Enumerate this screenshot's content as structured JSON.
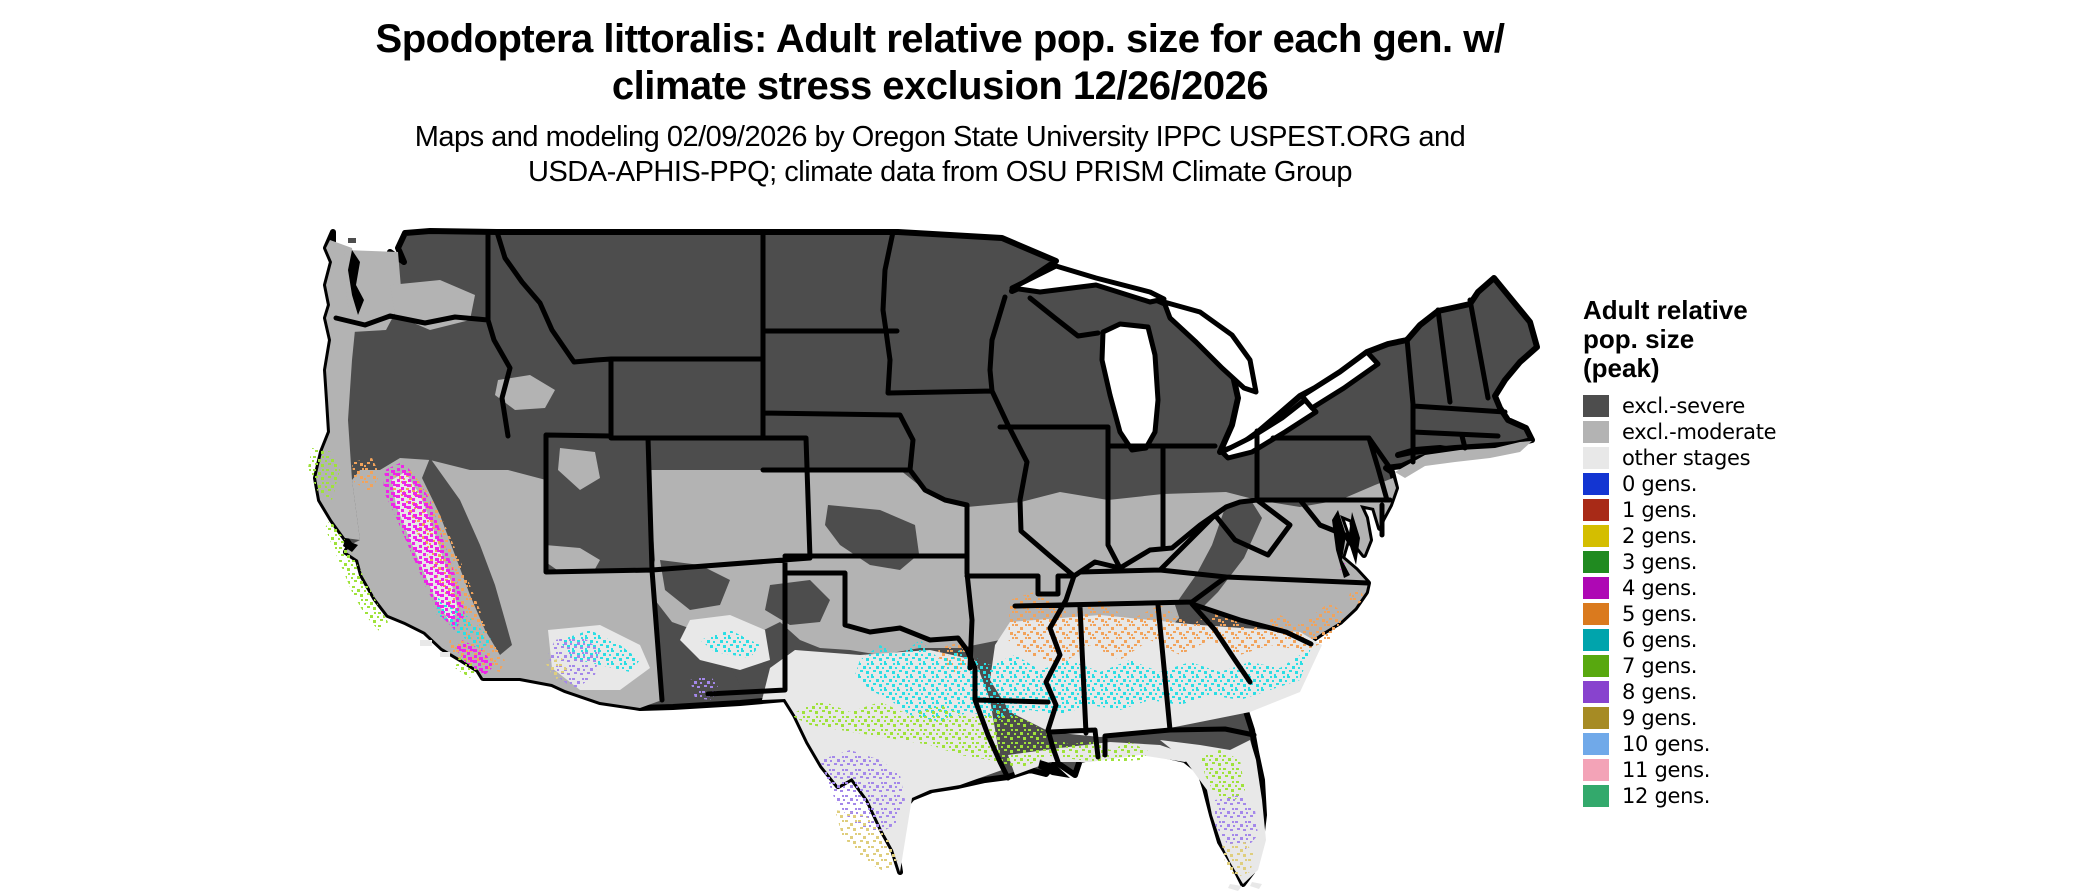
{
  "title": {
    "line1": "Spodoptera littoralis: Adult relative pop. size for each gen. w/",
    "line2": "climate stress exclusion 12/26/2026"
  },
  "subtitle": {
    "line1": "Maps and modeling 02/09/2026 by Oregon State University IPPC USPEST.ORG and",
    "line2": "USDA-APHIS-PPQ; climate data from OSU PRISM Climate Group"
  },
  "legend": {
    "title_line1": "Adult relative",
    "title_line2": "pop. size",
    "title_line3": "(peak)",
    "items": [
      {
        "label": "excl.-severe",
        "color": "#4d4d4d"
      },
      {
        "label": "excl.-moderate",
        "color": "#b3b3b3"
      },
      {
        "label": "other stages",
        "color": "#e8e8e8"
      },
      {
        "label": "0 gens.",
        "color": "#1335d2"
      },
      {
        "label": "1 gens.",
        "color": "#a82a17"
      },
      {
        "label": "2 gens.",
        "color": "#d4be00"
      },
      {
        "label": "3 gens.",
        "color": "#208a20"
      },
      {
        "label": "4 gens.",
        "color": "#ae08b4"
      },
      {
        "label": "5 gens.",
        "color": "#da7a1e"
      },
      {
        "label": "6 gens.",
        "color": "#00a4ac"
      },
      {
        "label": "7 gens.",
        "color": "#58a80f"
      },
      {
        "label": "8 gens.",
        "color": "#8843ce"
      },
      {
        "label": "9 gens.",
        "color": "#a68b24"
      },
      {
        "label": "10 gens.",
        "color": "#70a9e9"
      },
      {
        "label": "11 gens.",
        "color": "#f3a3b7"
      },
      {
        "label": "12 gens.",
        "color": "#33a96c"
      }
    ]
  },
  "map": {
    "colors": {
      "background": "#ffffff",
      "border": "#000000",
      "severe": "#4d4d4d",
      "moderate": "#b3b3b3",
      "other": "#e8e8e8",
      "water": "#ffffff",
      "speckle_cyan": "#2bdee4",
      "speckle_green": "#9fe23a",
      "speckle_purple": "#a488ea",
      "speckle_orange": "#f2a35b",
      "speckle_magenta": "#ee25e8",
      "speckle_khaki": "#dfce7d"
    }
  }
}
